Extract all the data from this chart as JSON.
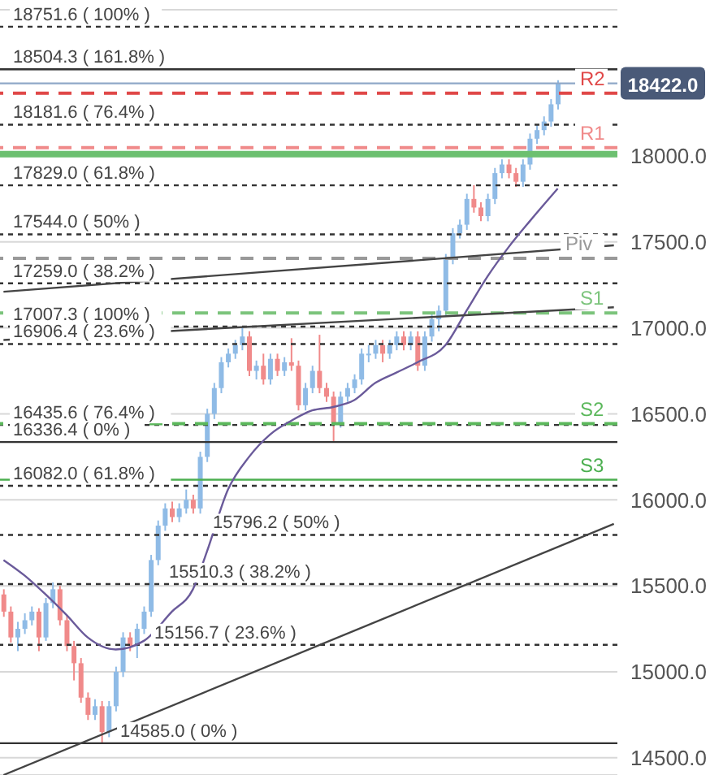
{
  "chart_data": {
    "type": "candlestick",
    "categories": [
      null,
      null,
      null,
      null,
      null,
      null,
      null,
      null,
      null,
      null,
      null,
      null,
      null,
      null,
      null,
      null,
      null,
      null,
      null,
      null,
      null,
      null,
      null,
      null,
      null,
      null,
      null,
      null,
      null,
      null,
      null,
      null,
      null,
      null,
      null,
      null,
      null,
      null,
      null,
      null,
      null,
      null,
      null,
      null,
      null,
      null,
      null,
      null,
      null,
      null,
      null,
      null,
      null,
      null,
      null,
      null,
      null,
      null,
      null,
      null,
      null,
      null,
      null,
      null,
      null,
      null,
      null,
      null,
      null,
      null,
      null,
      null,
      null,
      null,
      null,
      null,
      null,
      null,
      null,
      null,
      null,
      null,
      null,
      null,
      null,
      null,
      null,
      null
    ],
    "ohlc": [
      [
        15450,
        15480,
        15320,
        15350
      ],
      [
        15350,
        15380,
        15170,
        15200
      ],
      [
        15200,
        15290,
        15120,
        15250
      ],
      [
        15250,
        15340,
        15220,
        15300
      ],
      [
        15300,
        15380,
        15270,
        15350
      ],
      [
        15350,
        15370,
        15120,
        15200
      ],
      [
        15200,
        15430,
        15180,
        15400
      ],
      [
        15400,
        15520,
        15370,
        15480
      ],
      [
        15480,
        15500,
        15270,
        15300
      ],
      [
        15300,
        15330,
        15120,
        15150
      ],
      [
        15150,
        15180,
        14950,
        15050
      ],
      [
        15050,
        15080,
        14820,
        14850
      ],
      [
        14850,
        14880,
        14720,
        14750
      ],
      [
        14750,
        14840,
        14720,
        14800
      ],
      [
        14800,
        14830,
        14585,
        14650
      ],
      [
        14650,
        14830,
        14620,
        14800
      ],
      [
        14800,
        15030,
        14770,
        15000
      ],
      [
        15000,
        15230,
        14970,
        15200
      ],
      [
        15200,
        15230,
        15120,
        15150
      ],
      [
        15150,
        15280,
        15080,
        15250
      ],
      [
        15250,
        15380,
        15220,
        15350
      ],
      [
        15350,
        15680,
        15320,
        15650
      ],
      [
        15650,
        15880,
        15620,
        15850
      ],
      [
        15850,
        15980,
        15820,
        15950
      ],
      [
        15950,
        15990,
        15870,
        15900
      ],
      [
        15900,
        15980,
        15870,
        15950
      ],
      [
        15950,
        16060,
        15920,
        16000
      ],
      [
        16000,
        16030,
        15920,
        15950
      ],
      [
        15950,
        16280,
        15920,
        16250
      ],
      [
        16250,
        16530,
        16220,
        16500
      ],
      [
        16500,
        16680,
        16470,
        16650
      ],
      [
        16650,
        16830,
        16620,
        16800
      ],
      [
        16800,
        16880,
        16770,
        16850
      ],
      [
        16850,
        16930,
        16820,
        16900
      ],
      [
        16900,
        17007.3,
        16870,
        16950
      ],
      [
        16950,
        16980,
        16720,
        16750
      ],
      [
        16750,
        16810,
        16700,
        16780
      ],
      [
        16780,
        16850,
        16670,
        16700
      ],
      [
        16700,
        16850,
        16670,
        16820
      ],
      [
        16820,
        16850,
        16720,
        16750
      ],
      [
        16750,
        16830,
        16720,
        16800
      ],
      [
        16800,
        16940,
        16750,
        16780
      ],
      [
        16780,
        16810,
        16520,
        16550
      ],
      [
        16550,
        16680,
        16520,
        16650
      ],
      [
        16650,
        16780,
        16620,
        16750
      ],
      [
        16750,
        16960,
        16620,
        16650
      ],
      [
        16650,
        16680,
        16570,
        16600
      ],
      [
        16600,
        16630,
        16336.4,
        16450
      ],
      [
        16450,
        16630,
        16420,
        16600
      ],
      [
        16600,
        16680,
        16570,
        16650
      ],
      [
        16650,
        16730,
        16620,
        16700
      ],
      [
        16700,
        16880,
        16670,
        16850
      ],
      [
        16850,
        16900,
        16800,
        16850
      ],
      [
        16850,
        16930,
        16820,
        16900
      ],
      [
        16900,
        16930,
        16800,
        16850
      ],
      [
        16850,
        16930,
        16820,
        16900
      ],
      [
        16900,
        16980,
        16870,
        16950
      ],
      [
        16950,
        16980,
        16870,
        16900
      ],
      [
        16900,
        16980,
        16870,
        16950
      ],
      [
        16950,
        16980,
        16750,
        16780
      ],
      [
        16780,
        16980,
        16750,
        16950
      ],
      [
        16950,
        17080,
        16920,
        17050
      ],
      [
        17050,
        17130,
        16980,
        17100
      ],
      [
        17100,
        17430,
        17070,
        17400
      ],
      [
        17400,
        17580,
        17370,
        17550
      ],
      [
        17550,
        17630,
        17520,
        17600
      ],
      [
        17600,
        17780,
        17570,
        17750
      ],
      [
        17750,
        17830,
        17670,
        17700
      ],
      [
        17700,
        17730,
        17620,
        17650
      ],
      [
        17650,
        17780,
        17620,
        17750
      ],
      [
        17750,
        17930,
        17720,
        17900
      ],
      [
        17900,
        17980,
        17870,
        17950
      ],
      [
        17950,
        17980,
        17870,
        17900
      ],
      [
        17900,
        17930,
        17820,
        17850
      ],
      [
        17850,
        17980,
        17820,
        17950
      ],
      [
        17950,
        18130,
        17920,
        18100
      ],
      [
        18100,
        18180,
        18070,
        18150
      ],
      [
        18150,
        18230,
        18120,
        18200
      ],
      [
        18200,
        18330,
        18170,
        18300
      ],
      [
        18300,
        18440,
        18270,
        18422
      ],
      null,
      null,
      null,
      null,
      null,
      null,
      null,
      null
    ],
    "colors": [
      "#f08a8a",
      "#f08a8a",
      "#8fbbe6",
      "#8fbbe6",
      "#8fbbe6",
      "#f08a8a",
      "#8fbbe6",
      "#8fbbe6",
      "#f08a8a",
      "#f08a8a",
      "#f08a8a",
      "#f08a8a",
      "#f08a8a",
      "#8fbbe6",
      "#f08a8a",
      "#8fbbe6",
      "#8fbbe6",
      "#8fbbe6",
      "#f08a8a",
      "#8fbbe6",
      "#8fbbe6",
      "#8fbbe6",
      "#8fbbe6",
      "#8fbbe6",
      "#f08a8a",
      "#8fbbe6",
      "#8fbbe6",
      "#f08a8a",
      "#8fbbe6",
      "#8fbbe6",
      "#8fbbe6",
      "#8fbbe6",
      "#8fbbe6",
      "#8fbbe6",
      "#8fbbe6",
      "#f08a8a",
      "#8fbbe6",
      "#f08a8a",
      "#8fbbe6",
      "#f08a8a",
      "#8fbbe6",
      "#f08a8a",
      "#f08a8a",
      "#8fbbe6",
      "#8fbbe6",
      "#f08a8a",
      "#f08a8a",
      "#f08a8a",
      "#8fbbe6",
      "#8fbbe6",
      "#8fbbe6",
      "#8fbbe6",
      "#8fbbe6",
      "#8fbbe6",
      "#f08a8a",
      "#8fbbe6",
      "#8fbbe6",
      "#f08a8a",
      "#8fbbe6",
      "#f08a8a",
      "#8fbbe6",
      "#8fbbe6",
      "#8fbbe6",
      "#8fbbe6",
      "#8fbbe6",
      "#8fbbe6",
      "#8fbbe6",
      "#f08a8a",
      "#f08a8a",
      "#8fbbe6",
      "#8fbbe6",
      "#8fbbe6",
      "#f08a8a",
      "#f08a8a",
      "#8fbbe6",
      "#8fbbe6",
      "#8fbbe6",
      "#8fbbe6",
      "#8fbbe6",
      "#8fbbe6",
      null,
      null,
      null,
      null,
      null,
      null,
      null,
      null
    ],
    "series": [
      {
        "type": "line",
        "color": "#6a5a9a",
        "values": [
          15650,
          null,
          null,
          15560,
          null,
          null,
          15450,
          null,
          null,
          15330,
          null,
          null,
          15200,
          null,
          null,
          null,
          15130,
          null,
          null,
          null,
          15180,
          null,
          null,
          null,
          15350,
          null,
          null,
          15480,
          null,
          15700,
          null,
          null,
          16060,
          null,
          null,
          16250,
          null,
          null,
          16380,
          null,
          null,
          16460,
          null,
          null,
          16520,
          null,
          null,
          16540,
          null,
          null,
          16580,
          null,
          null,
          16680,
          null,
          null,
          16740,
          null,
          null,
          16800,
          null,
          null,
          null,
          16900,
          null,
          null,
          17100,
          null,
          null,
          17300,
          null,
          null,
          17470,
          null,
          null,
          17620,
          null,
          null,
          null,
          17810,
          null,
          null,
          null,
          null,
          null,
          null,
          null,
          null
        ]
      },
      {
        "type": "line",
        "color": "#444444",
        "values": [
          17210,
          null,
          null,
          null,
          null,
          null,
          null,
          null,
          null,
          null,
          null,
          null,
          null,
          null,
          null,
          null,
          null,
          null,
          null,
          null,
          null,
          null,
          null,
          null,
          null,
          null,
          null,
          null,
          null,
          null,
          null,
          null,
          null,
          null,
          null,
          null,
          null,
          null,
          null,
          null,
          null,
          null,
          null,
          null,
          null,
          null,
          null,
          null,
          null,
          null,
          null,
          null,
          null,
          null,
          null,
          null,
          null,
          null,
          null,
          null,
          null,
          null,
          null,
          null,
          null,
          null,
          null,
          null,
          null,
          null,
          null,
          null,
          null,
          null,
          null,
          null,
          null,
          null,
          null,
          null,
          null,
          null,
          null,
          null,
          null,
          null,
          null,
          17480
        ]
      },
      {
        "type": "line",
        "color": "#444444",
        "values": [
          16930,
          null,
          null,
          null,
          null,
          null,
          null,
          null,
          null,
          null,
          null,
          null,
          null,
          null,
          null,
          null,
          null,
          null,
          null,
          null,
          null,
          null,
          null,
          null,
          null,
          null,
          null,
          null,
          null,
          null,
          null,
          null,
          null,
          null,
          null,
          null,
          null,
          null,
          null,
          null,
          null,
          null,
          null,
          null,
          null,
          null,
          null,
          null,
          null,
          null,
          null,
          null,
          null,
          null,
          null,
          null,
          null,
          null,
          null,
          null,
          null,
          null,
          null,
          null,
          null,
          null,
          null,
          null,
          null,
          null,
          null,
          null,
          null,
          null,
          null,
          null,
          null,
          null,
          null,
          null,
          null,
          null,
          null,
          null,
          null,
          null,
          null,
          17120
        ]
      },
      {
        "type": "line",
        "color": "#444444",
        "values": [
          14400,
          null,
          null,
          null,
          null,
          null,
          null,
          null,
          null,
          null,
          null,
          null,
          null,
          null,
          null,
          null,
          null,
          null,
          null,
          null,
          null,
          null,
          null,
          null,
          null,
          null,
          null,
          null,
          null,
          null,
          null,
          null,
          null,
          null,
          null,
          null,
          null,
          null,
          null,
          null,
          null,
          null,
          null,
          null,
          null,
          null,
          null,
          null,
          null,
          null,
          null,
          null,
          null,
          null,
          null,
          null,
          null,
          null,
          null,
          null,
          null,
          null,
          null,
          null,
          null,
          null,
          null,
          null,
          null,
          null,
          null,
          null,
          null,
          null,
          null,
          null,
          null,
          null,
          null,
          null,
          null,
          null,
          null,
          null,
          null,
          null,
          null,
          15860
        ]
      }
    ],
    "ylim": [
      14400,
      18850
    ],
    "yticks": [
      {
        "value": 14500,
        "label": "14500.0"
      },
      {
        "value": 15000,
        "label": "15000.0"
      },
      {
        "value": 15500,
        "label": "15500.0"
      },
      {
        "value": 16000,
        "label": "16000.0"
      },
      {
        "value": 16500,
        "label": "16500.0"
      },
      {
        "value": 17000,
        "label": "17000.0"
      },
      {
        "value": 17500,
        "label": "17500.0"
      },
      {
        "value": 18000,
        "label": "18000.0"
      },
      {
        "value": 18500,
        "label": null
      }
    ],
    "tick_labels": "y",
    "grid": "y",
    "ref_lines": [
      {
        "axis": "y",
        "value": 18751.6,
        "label": "18751.6 ( 100% )",
        "color": "#333333",
        "line_style": "dotted"
      },
      {
        "axis": "y",
        "value": 18504.3,
        "label": "18504.3 ( 161.8% )",
        "color": "#333333",
        "line_style": "solid"
      },
      {
        "axis": "y",
        "value": 18181.6,
        "label": "18181.6 ( 76.4% )",
        "color": "#333333",
        "line_style": "dotted"
      },
      {
        "axis": "y",
        "value": 17829.0,
        "label": "17829.0 ( 61.8% )",
        "color": "#333333",
        "line_style": "dotted"
      },
      {
        "axis": "y",
        "value": 17544.0,
        "label": "17544.0 ( 50% )",
        "color": "#333333",
        "line_style": "dotted"
      },
      {
        "axis": "y",
        "value": 17259.0,
        "label": "17259.0 ( 38.2% )",
        "color": "#333333",
        "line_style": "dotted"
      },
      {
        "axis": "y",
        "value": 17007.3,
        "label": "17007.3 ( 100% )",
        "color": "#333333",
        "line_style": "dotted"
      },
      {
        "axis": "y",
        "value": 16906.4,
        "label": "16906.4 ( 23.6% )",
        "color": "#333333",
        "line_style": "dotted"
      },
      {
        "axis": "y",
        "value": 16435.6,
        "label": "16435.6 ( 76.4% )",
        "color": "#333333",
        "line_style": "dotted"
      },
      {
        "axis": "y",
        "value": 16336.4,
        "label": "16336.4 ( 0% )",
        "color": "#333333",
        "line_style": "solid"
      },
      {
        "axis": "y",
        "value": 16082.0,
        "label": "16082.0 ( 61.8% )",
        "color": "#333333",
        "line_style": "dotted"
      },
      {
        "axis": "y",
        "value": 15796.2,
        "label": "15796.2 ( 50% )",
        "color": "#333333",
        "line_style": "dotted"
      },
      {
        "axis": "y",
        "value": 15510.3,
        "label": "15510.3 ( 38.2% )",
        "color": "#333333",
        "line_style": "dotted"
      },
      {
        "axis": "y",
        "value": 15156.7,
        "label": "15156.7 ( 23.6% )",
        "color": "#333333",
        "line_style": "dotted"
      },
      {
        "axis": "y",
        "value": 14585.0,
        "label": "14585.0 ( 0% )",
        "color": "#333333",
        "line_style": "solid"
      },
      {
        "axis": "y",
        "value": 18365,
        "label": "R2",
        "color": "#e04848",
        "line_style": "dashed"
      },
      {
        "axis": "y",
        "value": 18048,
        "label": "R1",
        "color": "#f08a8a",
        "line_style": "dashed"
      },
      {
        "axis": "y",
        "value": 17404,
        "label": "Piv",
        "color": "#999999",
        "line_style": "dashed"
      },
      {
        "axis": "y",
        "value": 17087,
        "label": "S1",
        "color": "#7cc47c",
        "line_style": "dashed"
      },
      {
        "axis": "y",
        "value": 16443,
        "label": "S2",
        "color": "#5cb85c",
        "line_style": "dashed"
      },
      {
        "axis": "y",
        "value": 16117,
        "label": "S3",
        "color": "#4caf50",
        "line_style": "solid"
      },
      {
        "axis": "y",
        "value": 18010,
        "color": "#6cc070",
        "line_style": "solid"
      },
      {
        "axis": "y",
        "value": 18422,
        "label": "18422.0",
        "color": "#8fa8c8",
        "line_style": "solid"
      }
    ]
  }
}
